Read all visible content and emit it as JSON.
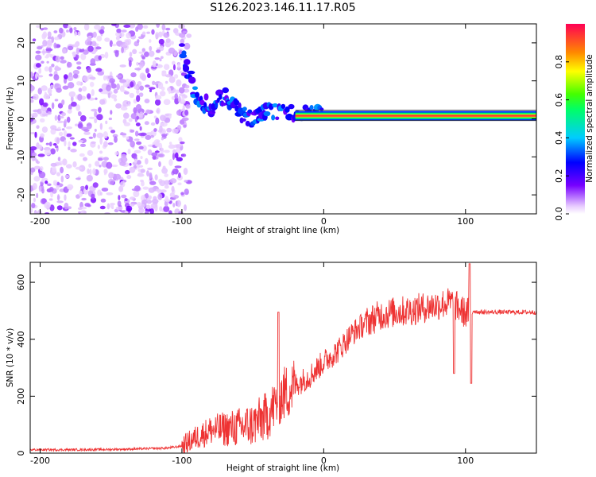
{
  "title": "S126.2023.146.11.17.R05",
  "chart_data": [
    {
      "type": "heatmap",
      "name": "spectrogram",
      "xlabel": "Height of straight line (km)",
      "ylabel": "Frequency (Hz)",
      "xlim": [
        -207,
        150
      ],
      "ylim": [
        -25,
        25
      ],
      "xticks": [
        -200,
        -100,
        0,
        100
      ],
      "yticks": [
        -20,
        -10,
        0,
        10,
        20
      ],
      "colorbar": {
        "label": "Normalized spectral amplitude",
        "range": [
          0,
          1
        ],
        "ticks": [
          "0.0",
          "0.2",
          "0.4",
          "0.6",
          "0.8"
        ],
        "tick_values": [
          0,
          0.2,
          0.4,
          0.6,
          0.8
        ]
      },
      "features": [
        {
          "description": "noise region",
          "x_range": [
            -207,
            -100
          ],
          "amplitude": 0.2
        },
        {
          "description": "descending echo trail",
          "points": [
            [
              -100,
              18
            ],
            [
              -90,
              6
            ],
            [
              -80,
              3
            ],
            [
              -70,
              6
            ],
            [
              -60,
              2
            ],
            [
              -50,
              0
            ],
            [
              -40,
              2
            ],
            [
              -20,
              1.5
            ],
            [
              0,
              1
            ]
          ],
          "amplitude": 0.5
        },
        {
          "description": "stable tone",
          "x_range": [
            -20,
            150
          ],
          "y": 0.8,
          "amplitude": 0.95
        }
      ]
    },
    {
      "type": "line",
      "name": "snr",
      "xlabel": "Height of straight line (km)",
      "ylabel": "SNR (10 * v/v)",
      "xlim": [
        -207,
        150
      ],
      "ylim": [
        0,
        670
      ],
      "xticks": [
        -200,
        -100,
        0,
        100
      ],
      "yticks": [
        0,
        200,
        400,
        600
      ],
      "color": "#ee3333",
      "series": [
        {
          "name": "SNR",
          "x": [
            -207,
            -180,
            -150,
            -130,
            -110,
            -100,
            -90,
            -80,
            -70,
            -60,
            -50,
            -40,
            -30,
            -20,
            -10,
            0,
            10,
            20,
            30,
            40,
            50,
            60,
            70,
            80,
            90,
            95,
            100,
            105,
            110,
            120,
            130,
            140,
            150
          ],
          "y": [
            12,
            12,
            13,
            15,
            18,
            25,
            55,
            80,
            85,
            90,
            100,
            130,
            200,
            240,
            270,
            320,
            360,
            420,
            460,
            485,
            495,
            500,
            510,
            520,
            530,
            510,
            490,
            500,
            495,
            495,
            495,
            495,
            495
          ]
        }
      ],
      "annotations": [
        {
          "x": -32,
          "y": 495,
          "note": "spike"
        },
        {
          "x": 103,
          "y": 665,
          "note": "spike"
        }
      ]
    }
  ]
}
